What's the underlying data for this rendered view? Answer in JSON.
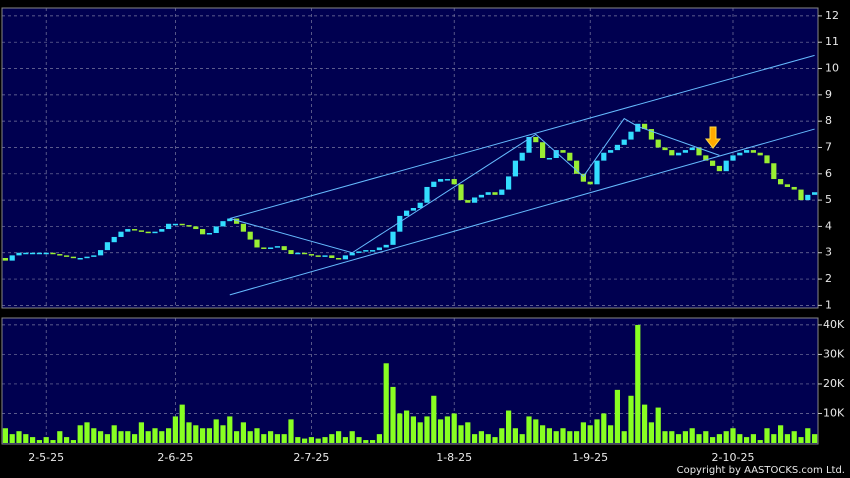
{
  "chart_data": [
    {
      "type": "candlestick",
      "categories": [
        null,
        null,
        null,
        null,
        null,
        null,
        "2-5-25",
        null,
        null,
        null,
        null,
        null,
        null,
        null,
        null,
        null,
        null,
        null,
        null,
        null,
        null,
        null,
        null,
        null,
        null,
        "2-6-25",
        null,
        null,
        null,
        null,
        null,
        null,
        null,
        null,
        null,
        null,
        null,
        null,
        null,
        null,
        null,
        null,
        null,
        null,
        null,
        "2-7-25",
        null,
        null,
        null,
        null,
        null,
        null,
        null,
        null,
        null,
        null,
        null,
        null,
        null,
        null,
        null,
        null,
        null,
        null,
        null,
        null,
        "1-8-25",
        null,
        null,
        null,
        null,
        null,
        null,
        null,
        null,
        null,
        null,
        null,
        null,
        null,
        null,
        null,
        null,
        null,
        null,
        null,
        "1-9-25",
        null,
        null,
        null,
        null,
        null,
        null,
        null,
        null,
        null,
        null,
        null,
        null,
        null,
        null,
        null,
        null,
        null,
        null,
        null,
        null,
        "2-10-25",
        null,
        null,
        null,
        null,
        null,
        null,
        null,
        null,
        null,
        null,
        null,
        null
      ],
      "open": [
        2.8,
        2.7,
        2.9,
        3.0,
        3.0,
        3.0,
        3.0,
        3.0,
        2.95,
        2.9,
        2.85,
        2.8,
        2.8,
        2.85,
        2.9,
        3.1,
        3.4,
        3.6,
        3.8,
        3.9,
        3.85,
        3.8,
        3.75,
        3.8,
        3.9,
        4.1,
        4.1,
        4.05,
        4.0,
        3.9,
        3.7,
        3.75,
        4.0,
        4.2,
        4.3,
        4.1,
        3.8,
        3.5,
        3.2,
        3.15,
        3.2,
        3.25,
        3.1,
        2.95,
        3.0,
        2.95,
        2.9,
        2.85,
        2.9,
        2.8,
        2.75,
        2.9,
        3.0,
        3.05,
        3.1,
        3.1,
        3.2,
        3.3,
        3.8,
        4.4,
        4.6,
        4.7,
        4.9,
        5.5,
        5.7,
        5.8,
        5.8,
        5.6,
        5.0,
        4.9,
        5.1,
        5.2,
        5.3,
        5.2,
        5.4,
        5.9,
        6.5,
        6.8,
        7.4,
        7.2,
        6.6,
        6.6,
        6.9,
        6.8,
        6.5,
        6.0,
        5.7,
        5.6,
        6.5,
        6.8,
        6.9,
        7.1,
        7.3,
        7.6,
        7.9,
        7.7,
        7.3,
        7.0,
        6.9,
        6.7,
        6.8,
        6.9,
        7.0,
        6.7,
        6.5,
        6.3,
        6.1,
        6.5,
        6.7,
        6.8,
        6.9,
        6.8,
        6.7,
        6.4,
        5.8,
        5.6,
        5.5,
        5.4,
        5.0,
        5.2
      ],
      "close": [
        2.7,
        2.9,
        3.0,
        3.0,
        3.0,
        3.0,
        3.0,
        2.95,
        2.9,
        2.85,
        2.8,
        2.8,
        2.85,
        2.9,
        3.1,
        3.4,
        3.6,
        3.8,
        3.9,
        3.85,
        3.8,
        3.75,
        3.8,
        3.9,
        4.1,
        4.1,
        4.05,
        4.0,
        3.9,
        3.7,
        3.75,
        4.0,
        4.2,
        4.3,
        4.1,
        3.8,
        3.5,
        3.2,
        3.15,
        3.2,
        3.25,
        3.1,
        2.95,
        3.0,
        2.95,
        2.9,
        2.85,
        2.9,
        2.8,
        2.75,
        2.9,
        3.0,
        3.05,
        3.1,
        3.1,
        3.2,
        3.3,
        3.8,
        4.4,
        4.6,
        4.7,
        4.9,
        5.5,
        5.7,
        5.8,
        5.8,
        5.6,
        5.0,
        4.9,
        5.1,
        5.2,
        5.3,
        5.2,
        5.4,
        5.9,
        6.5,
        6.8,
        7.4,
        7.2,
        6.6,
        6.6,
        6.9,
        6.8,
        6.5,
        6.0,
        5.7,
        5.6,
        6.5,
        6.8,
        6.9,
        7.1,
        7.3,
        7.6,
        7.9,
        7.7,
        7.3,
        7.0,
        6.9,
        6.7,
        6.8,
        6.9,
        7.0,
        6.7,
        6.5,
        6.3,
        6.1,
        6.5,
        6.7,
        6.8,
        6.9,
        6.8,
        6.7,
        6.4,
        5.8,
        5.6,
        5.5,
        5.4,
        5.0,
        5.2,
        5.3
      ],
      "up_color": "#33ddff",
      "down_color": "#99ee33",
      "ylim": [
        0.9,
        12.3
      ],
      "yticks": [
        1,
        2,
        3,
        4,
        5,
        6,
        7,
        8,
        9,
        10,
        11,
        12
      ],
      "grid": true,
      "trendlines": [
        {
          "x": [
            33,
            119
          ],
          "y": [
            4.3,
            10.5
          ]
        },
        {
          "x": [
            33,
            119
          ],
          "y": [
            1.4,
            7.7
          ]
        },
        {
          "x": [
            33,
            51,
            78,
            85,
            91,
            93,
            105
          ],
          "y": [
            4.3,
            3.0,
            7.5,
            5.9,
            8.1,
            7.8,
            6.7
          ]
        }
      ],
      "trendline_color": "#66bbff"
    },
    {
      "type": "bar",
      "values": [
        5000,
        3000,
        4000,
        3000,
        2000,
        1000,
        2000,
        1000,
        4000,
        2000,
        1000,
        6000,
        7000,
        5000,
        4000,
        3000,
        6000,
        4000,
        4000,
        3000,
        7000,
        4000,
        5000,
        4000,
        5000,
        9000,
        13000,
        7000,
        6000,
        5000,
        5000,
        8000,
        6000,
        9000,
        4000,
        7000,
        4000,
        5000,
        3000,
        4000,
        3000,
        3000,
        8000,
        2000,
        1500,
        2000,
        1500,
        2000,
        3000,
        4000,
        2000,
        4000,
        2000,
        1000,
        1000,
        3000,
        27000,
        19000,
        10000,
        11000,
        9000,
        7000,
        9000,
        16000,
        8000,
        9000,
        10000,
        6000,
        7000,
        3000,
        4000,
        3000,
        2000,
        5000,
        11000,
        5000,
        3000,
        9000,
        8000,
        6000,
        5000,
        4000,
        5000,
        4000,
        4000,
        7000,
        6000,
        8000,
        10000,
        6000,
        18000,
        4000,
        16000,
        40000,
        13000,
        7000,
        12000,
        4000,
        4000,
        3000,
        4000,
        5000,
        3000,
        4000,
        2000,
        3000,
        4000,
        5000,
        3000,
        2000,
        3000,
        1000,
        5000,
        3000,
        6000,
        3000,
        4000,
        2000,
        5000,
        3000
      ],
      "color": "#88ff22",
      "ylim": [
        0,
        42000
      ],
      "yticks": [
        {
          "value": 10000,
          "label": "10K"
        },
        {
          "value": 20000,
          "label": "20K"
        },
        {
          "value": 30000,
          "label": "30K"
        },
        {
          "value": 40000,
          "label": "40K"
        }
      ],
      "grid": true
    }
  ],
  "copyright": "Copyright by AASTOCKS.com Ltd."
}
